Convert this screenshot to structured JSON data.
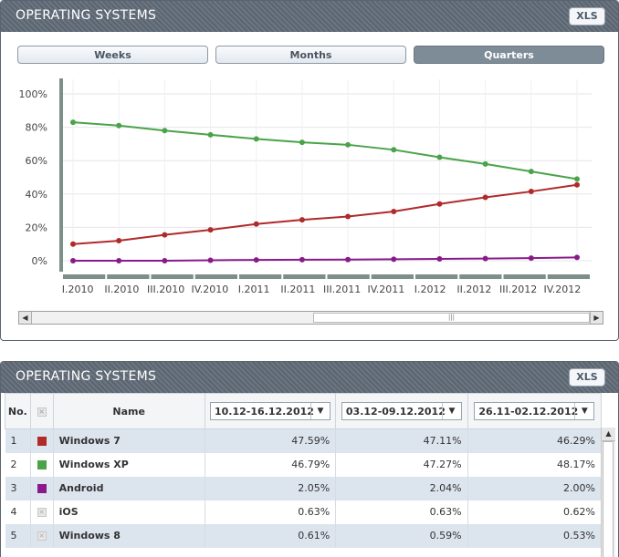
{
  "top_panel": {
    "title": "OPERATING SYSTEMS",
    "xls_label": "XLS",
    "tabs": [
      {
        "label": "Weeks",
        "active": false
      },
      {
        "label": "Months",
        "active": false
      },
      {
        "label": "Quarters",
        "active": true
      }
    ]
  },
  "chart_data": {
    "type": "line",
    "x": [
      "I.2010",
      "II.2010",
      "III.2010",
      "IV.2010",
      "I.2011",
      "II.2011",
      "III.2011",
      "IV.2011",
      "I.2012",
      "II.2012",
      "III.2012",
      "IV.2012"
    ],
    "y_ticks": [
      "100%",
      "80%",
      "60%",
      "40%",
      "20%",
      "0%"
    ],
    "ylim": [
      0,
      100
    ],
    "grid": true,
    "series": [
      {
        "color": "#4aa34a",
        "values": [
          83,
          81,
          78,
          75.5,
          73,
          71,
          69.5,
          66.5,
          62,
          58,
          53.5,
          49
        ]
      },
      {
        "color": "#b02a2a",
        "values": [
          10,
          12,
          15.5,
          18.5,
          22,
          24.5,
          26.5,
          29.5,
          34,
          38,
          41.5,
          45.5
        ]
      },
      {
        "color": "#8a1a8a",
        "values": [
          0,
          0,
          0,
          0.3,
          0.5,
          0.6,
          0.7,
          0.9,
          1.1,
          1.3,
          1.6,
          2
        ]
      }
    ]
  },
  "bottom_panel": {
    "title": "OPERATING SYSTEMS",
    "xls_label": "XLS",
    "columns": {
      "no": "No.",
      "name": "Name",
      "date1": "10.12-16.12.2012",
      "date2": "03.12-09.12.2012",
      "date3": "26.11-02.12.2012"
    },
    "rows": [
      {
        "no": "1",
        "name": "Windows 7",
        "color": "#b02a2a",
        "v1": "47.59%",
        "v2": "47.11%",
        "v3": "46.29%"
      },
      {
        "no": "2",
        "name": "Windows XP",
        "color": "#4aa34a",
        "v1": "46.79%",
        "v2": "47.27%",
        "v3": "48.17%"
      },
      {
        "no": "3",
        "name": "Android",
        "color": "#8a1a8a",
        "v1": "2.05%",
        "v2": "2.04%",
        "v3": "2.00%"
      },
      {
        "no": "4",
        "name": "iOS",
        "color": "",
        "v1": "0.63%",
        "v2": "0.63%",
        "v3": "0.62%"
      },
      {
        "no": "5",
        "name": "Windows 8",
        "color": "",
        "v1": "0.61%",
        "v2": "0.59%",
        "v3": "0.53%"
      }
    ]
  }
}
